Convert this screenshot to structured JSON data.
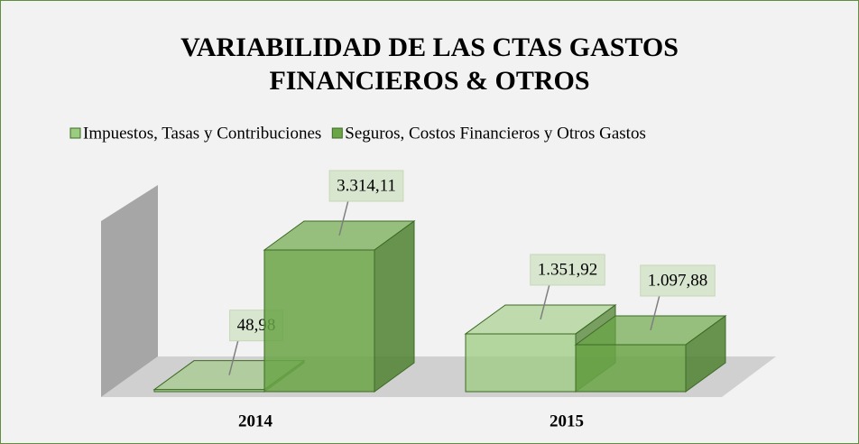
{
  "chart_data": {
    "type": "bar3d",
    "title": [
      "VARIABILIDAD DE LAS CTAS GASTOS",
      "FINANCIEROS & OTROS"
    ],
    "categories": [
      "2014",
      "2015"
    ],
    "series": [
      {
        "name": "Impuestos, Tasas y Contribuciones",
        "color": "#9ccc80",
        "values": [
          48.98,
          1351.92
        ],
        "value_labels": [
          "48,98",
          "1.351,92"
        ]
      },
      {
        "name": "Seguros, Costos Financieros y Otros Gastos",
        "color": "#6aa546",
        "values": [
          3314.11,
          1097.88
        ],
        "value_labels": [
          "3.314,11",
          "1.097,88"
        ]
      }
    ],
    "legend": "top"
  }
}
